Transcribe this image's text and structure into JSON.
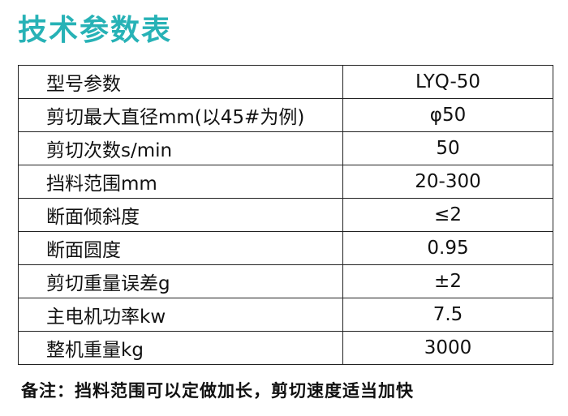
{
  "header": {
    "title": "技术参数表"
  },
  "table": {
    "rows": [
      [
        "型号参数",
        "LYQ-50"
      ],
      [
        "剪切最大直径mm(以45#为例)",
        "φ50"
      ],
      [
        "剪切次数s/min",
        "50"
      ],
      [
        "挡料范围mm",
        "20-300"
      ],
      [
        "断面倾斜度",
        "≤2"
      ],
      [
        "断面圆度",
        "0.95"
      ],
      [
        "剪切重量误差g",
        "±2"
      ],
      [
        "主电机功率kw",
        "7.5"
      ],
      [
        "整机重量kg",
        "3000"
      ]
    ]
  },
  "note": "备注：挡料范围可以定做加长，剪切速度适当加快"
}
